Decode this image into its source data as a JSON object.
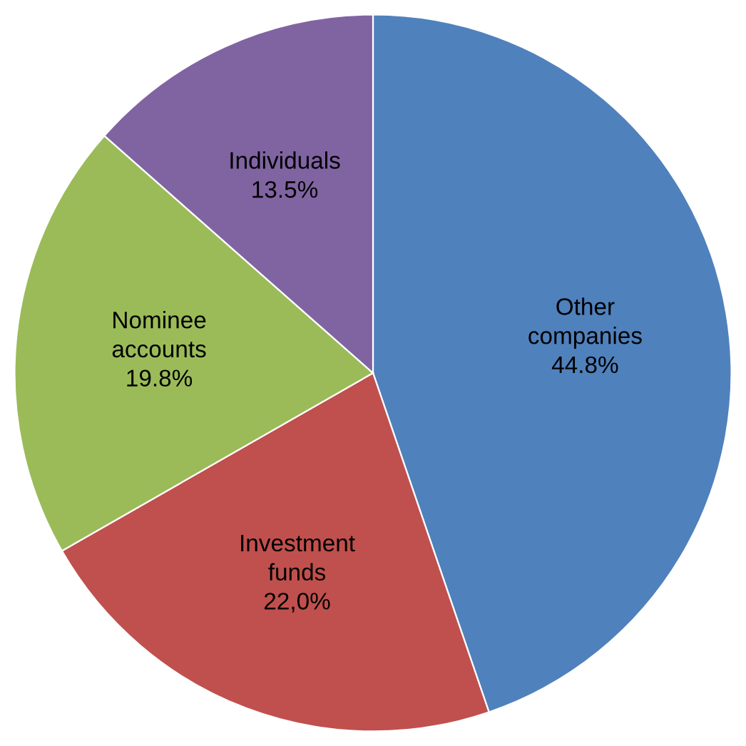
{
  "chart_data": {
    "type": "pie",
    "categories": [
      "Other companies",
      "Investment funds",
      "Nominee accounts",
      "Individuals"
    ],
    "values": [
      44.8,
      22.0,
      19.8,
      13.5
    ],
    "value_labels": [
      "44.8%",
      "22,0%",
      "19.8%",
      "13.5%"
    ],
    "colors": [
      "#4f81bd",
      "#c0504d",
      "#9bbb59",
      "#8064a2"
    ]
  }
}
